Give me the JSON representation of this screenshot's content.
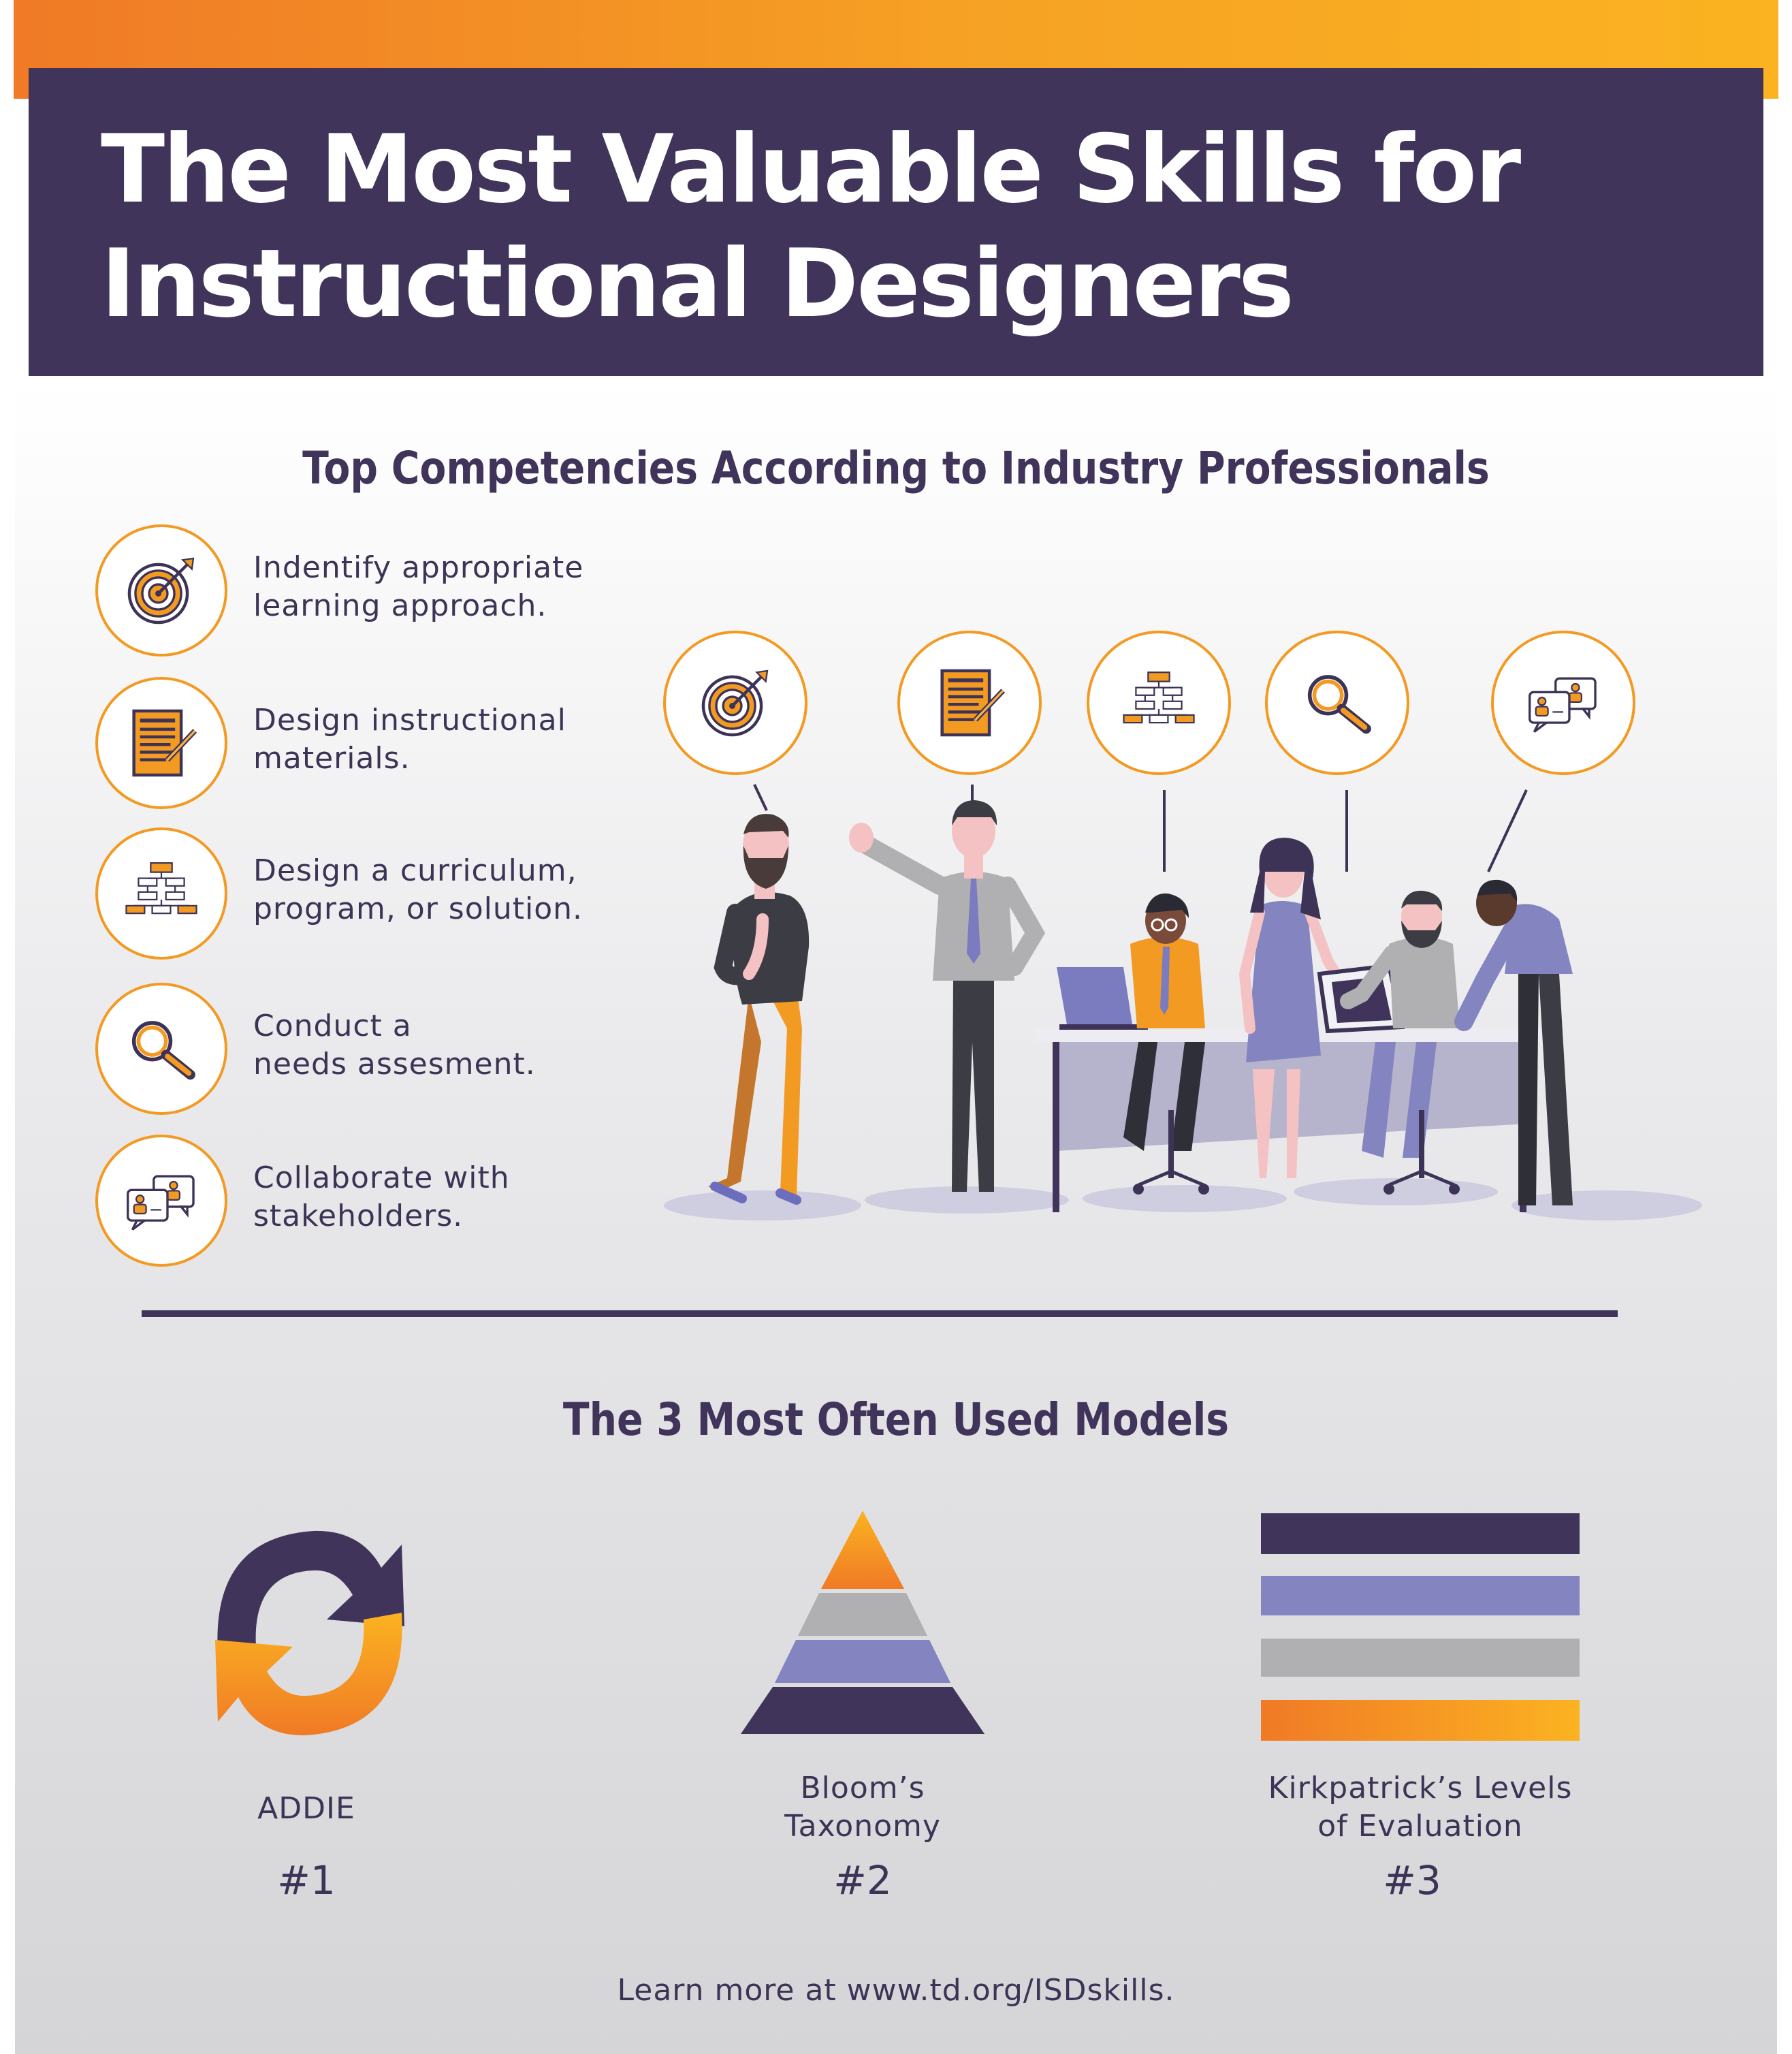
{
  "header": {
    "title_line1": "The Most Valuable Skills for",
    "title_line2": "Instructional Designers"
  },
  "competencies": {
    "heading": "Top Competencies According to Industry Professionals",
    "items": [
      {
        "icon": "target-icon",
        "line1": "Indentify appropriate",
        "line2": "learning approach."
      },
      {
        "icon": "document-pen-icon",
        "line1": "Design instructional",
        "line2": "materials."
      },
      {
        "icon": "flowchart-icon",
        "line1": "Design a curriculum,",
        "line2": "program, or solution."
      },
      {
        "icon": "magnifier-icon",
        "line1": "Conduct a",
        "line2": "needs assesment."
      },
      {
        "icon": "chat-people-icon",
        "line1": "Collaborate with",
        "line2": "stakeholders."
      }
    ]
  },
  "illustration": {
    "icons": [
      "target-icon",
      "document-pen-icon",
      "flowchart-icon",
      "magnifier-icon",
      "chat-people-icon"
    ]
  },
  "models": {
    "heading": "The 3 Most Often Used Models",
    "items": [
      {
        "icon": "cycle-arrows-icon",
        "line1": "ADDIE",
        "line2": "",
        "rank": "#1"
      },
      {
        "icon": "pyramid-icon",
        "line1": "Bloom’s",
        "line2": "Taxonomy",
        "rank": "#2"
      },
      {
        "icon": "stacked-bars-icon",
        "line1": "Kirkpatrick’s Levels",
        "line2": "of Evaluation",
        "rank": "#3"
      }
    ]
  },
  "footer": {
    "text": "Learn more at www.td.org/ISDskills."
  },
  "colors": {
    "purple": "#41345a",
    "orange": "#f39a23",
    "lavender": "#8384c0",
    "gray": "#b0b0b2"
  }
}
